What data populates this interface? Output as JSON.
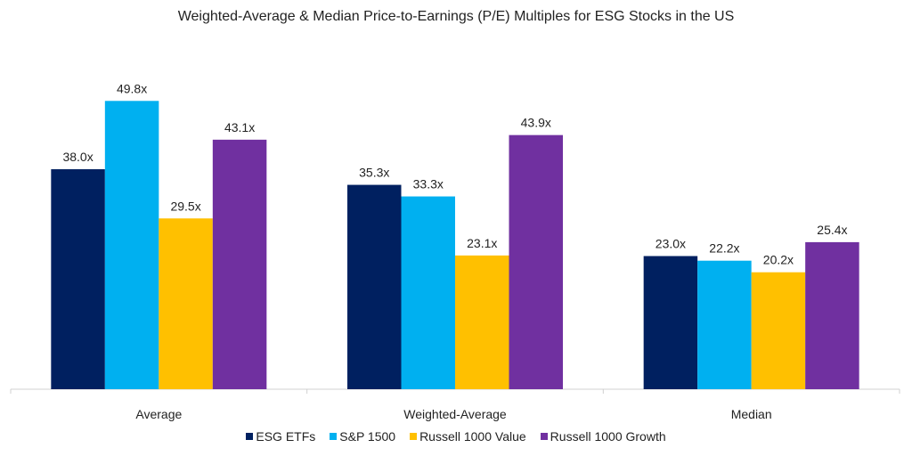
{
  "chart_data": {
    "type": "bar",
    "title": "Weighted-Average & Median Price-to-Earnings (P/E) Multiples for ESG Stocks in the US",
    "categories": [
      "Average",
      "Weighted-Average",
      "Median"
    ],
    "series": [
      {
        "name": "ESG ETFs",
        "color": "#002060",
        "values": [
          38.0,
          35.3,
          23.0
        ]
      },
      {
        "name": "S&P 1500",
        "color": "#00B0F0",
        "values": [
          49.8,
          33.3,
          22.2
        ]
      },
      {
        "name": "Russell 1000 Value",
        "color": "#FFC000",
        "values": [
          29.5,
          23.1,
          20.2
        ]
      },
      {
        "name": "Russell 1000 Growth",
        "color": "#7030A0",
        "values": [
          43.1,
          43.9,
          25.4
        ]
      }
    ],
    "value_suffix": "x",
    "ylim": [
      0,
      55
    ],
    "grid": false,
    "legend": "bottom",
    "xlabel": "",
    "ylabel": ""
  }
}
